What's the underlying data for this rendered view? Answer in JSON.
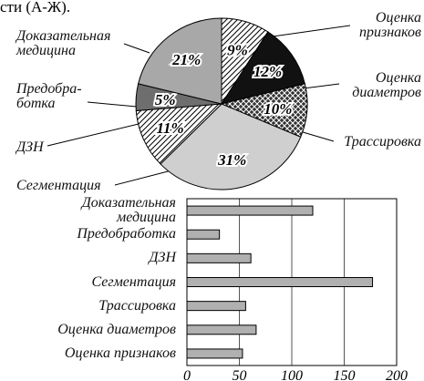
{
  "caption": "сти (А-Ж).",
  "chart_data": [
    {
      "type": "pie",
      "categories": [
        "Оценка\nпризнаков",
        "Оценка\nдиаметров",
        "Трассировка",
        "Сегментация",
        "ДЗН",
        "Предобра-\nботка",
        "Доказательная\nмедицина"
      ],
      "values": [
        9,
        12,
        10,
        31,
        11,
        5,
        21
      ],
      "value_labels": [
        "9%",
        "12%",
        "10%",
        "31%",
        "11%",
        "5%",
        "21%"
      ],
      "colors": [
        "#ffffff",
        "#111111",
        "#333333",
        "#cfcfcf",
        "#ffffff",
        "#6e6e6e",
        "#a8a8a8"
      ],
      "patterns": [
        "diagonal",
        null,
        "cross",
        null,
        "diagonal",
        null,
        null
      ]
    },
    {
      "type": "hbar",
      "categories": [
        "Доказательная\nмедицина",
        "Предобработка",
        "ДЗН",
        "Сегментация",
        "Трассировка",
        "Оценка диаметров",
        "Оценка признаков"
      ],
      "values": [
        120,
        31,
        61,
        177,
        56,
        66,
        53
      ],
      "color": "#b0b0b0",
      "xlim": [
        0,
        200
      ],
      "xticks": [
        0,
        50,
        100,
        150,
        200
      ],
      "grid": true
    }
  ]
}
